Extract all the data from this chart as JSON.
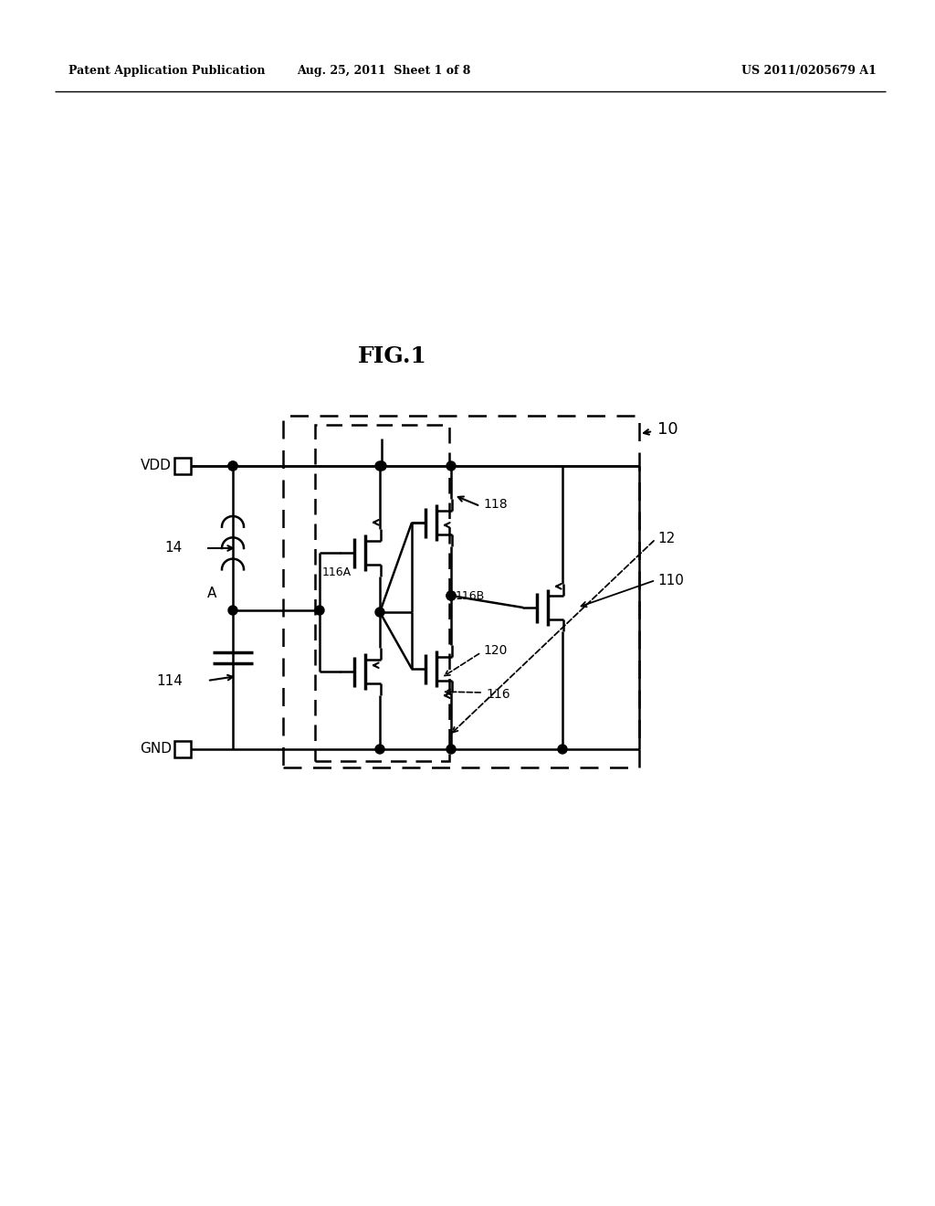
{
  "bg_color": "#ffffff",
  "header_left": "Patent Application Publication",
  "header_mid": "Aug. 25, 2011  Sheet 1 of 8",
  "header_right": "US 2011/0205679 A1",
  "fig_label": "FIG.1"
}
